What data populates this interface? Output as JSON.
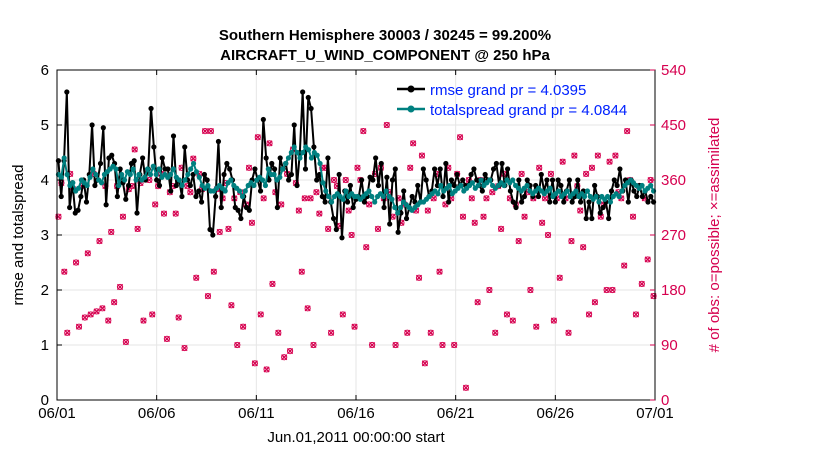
{
  "chart_data": {
    "type": "line",
    "title_line1": "Southern Hemisphere 30003 / 30245 = 99.200%",
    "title_line2": "AIRCRAFT_U_WIND_COMPONENT @ 250 hPa",
    "xlabel": "Jun.01,2011 00:00:00 start",
    "ylabel_left": "rmse and totalspread",
    "ylabel_right": "# of obs: o=possible; ×=assimilated",
    "xlim": [
      0,
      30
    ],
    "ylim_left": [
      0,
      6
    ],
    "ylim_right": [
      0,
      540
    ],
    "x_ticks": [
      {
        "value": 0,
        "label": "06/01"
      },
      {
        "value": 5,
        "label": "06/06"
      },
      {
        "value": 10,
        "label": "06/11"
      },
      {
        "value": 15,
        "label": "06/16"
      },
      {
        "value": 20,
        "label": "06/21"
      },
      {
        "value": 25,
        "label": "06/26"
      },
      {
        "value": 30,
        "label": "07/01"
      }
    ],
    "y_ticks_left": [
      "0",
      "1",
      "2",
      "3",
      "4",
      "5",
      "6"
    ],
    "y_ticks_right": [
      "0",
      "90",
      "180",
      "270",
      "360",
      "450",
      "540"
    ],
    "legend": [
      {
        "name": "rmse grand pr = 4.0395",
        "color": "#000000"
      },
      {
        "name": "totalspread grand pr = 4.0844",
        "color": "#008080"
      }
    ],
    "series": [
      {
        "name": "rmse",
        "color": "#000000",
        "values": [
          4.35,
          3.7,
          4.35,
          5.6,
          3.5,
          3.95,
          3.4,
          3.45,
          3.7,
          4.0,
          3.6,
          4.1,
          5.0,
          3.9,
          4.0,
          4.3,
          4.95,
          3.55,
          4.4,
          4.45,
          4.3,
          3.7,
          4.2,
          3.95,
          3.65,
          3.9,
          4.3,
          4.35,
          3.4,
          4.1,
          4.4,
          4.0,
          4.2,
          5.3,
          4.6,
          4.0,
          3.9,
          4.4,
          4.2,
          4.2,
          3.8,
          4.8,
          3.9,
          4.0,
          3.7,
          4.6,
          4.0,
          3.9,
          4.1,
          3.7,
          3.8,
          3.6,
          4.1,
          4.0,
          3.1,
          3.0,
          3.7,
          4.7,
          3.5,
          4.1,
          4.3,
          4.2,
          4.0,
          3.5,
          3.45,
          3.3,
          3.7,
          3.5,
          3.45,
          4.0,
          4.2,
          4.0,
          3.8,
          5.1,
          4.4,
          4.0,
          4.3,
          4.2,
          3.5,
          4.4,
          4.2,
          4.3,
          4.0,
          4.1,
          5.0,
          3.9,
          4.5,
          5.6,
          4.2,
          5.5,
          5.3,
          4.6,
          4.0,
          4.1,
          3.7,
          3.6,
          4.4,
          3.6,
          3.3,
          3.1,
          4.1,
          2.95,
          3.8,
          3.6,
          3.9,
          3.5,
          3.65,
          3.7,
          4.0,
          3.6,
          3.7,
          4.05,
          4.0,
          4.4,
          3.9,
          4.3,
          3.5,
          4.05,
          3.2,
          4.0,
          4.2,
          3.05,
          3.4,
          3.8,
          3.3,
          3.5,
          3.7,
          3.6,
          3.9,
          3.6,
          4.2,
          4.0,
          3.7,
          3.8,
          4.2,
          3.9,
          4.2,
          3.7,
          4.3,
          3.6,
          4.0,
          3.9,
          4.1,
          3.9,
          4.0,
          3.9,
          3.9,
          4.1,
          4.2,
          4.0,
          3.9,
          3.8,
          4.1,
          4.0,
          4.0,
          4.2,
          4.3,
          3.9,
          4.3,
          3.9,
          4.2,
          3.8,
          3.6,
          3.5,
          4.0,
          3.6,
          3.7,
          4.0,
          3.9,
          3.7,
          3.9,
          3.7,
          4.1,
          3.8,
          4.0,
          3.6,
          4.0,
          3.6,
          4.0,
          3.9,
          3.6,
          3.8,
          4.0,
          3.6,
          3.7,
          4.0,
          3.6,
          3.8,
          3.3,
          3.6,
          3.3,
          3.9,
          3.7,
          3.4,
          3.5,
          3.6,
          3.3,
          3.8,
          4.0,
          3.9,
          4.2,
          3.8,
          4.0,
          3.6,
          4.0,
          3.8,
          3.7,
          3.9,
          3.7,
          3.8,
          3.6,
          3.7,
          3.6
        ]
      },
      {
        "name": "totalspread",
        "color": "#008080",
        "values": [
          4.1,
          4.05,
          4.4,
          4.1,
          3.9,
          3.95,
          3.8,
          3.85,
          4.0,
          3.95,
          3.9,
          4.05,
          4.2,
          4.1,
          4.0,
          3.95,
          4.1,
          4.15,
          4.2,
          4.25,
          4.2,
          3.9,
          4.1,
          4.0,
          4.15,
          4.1,
          4.2,
          4.0,
          4.1,
          4.0,
          4.05,
          4.2,
          4.1,
          4.25,
          4.1,
          4.2,
          4.05,
          4.1,
          4.05,
          4.1,
          4.2,
          4.05,
          4.0,
          3.9,
          4.0,
          4.1,
          4.2,
          4.3,
          4.15,
          4.05,
          3.9,
          3.85,
          3.9,
          3.8,
          3.8,
          3.85,
          3.9,
          3.85,
          3.8,
          3.95,
          4.0,
          3.9,
          3.85,
          3.8,
          3.7,
          3.8,
          3.9,
          3.95,
          3.9,
          4.0,
          4.05,
          4.0,
          3.9,
          4.2,
          4.1,
          4.1,
          4.0,
          4.05,
          4.2,
          4.3,
          4.4,
          4.5,
          4.6,
          4.5,
          4.4,
          4.5,
          4.6,
          4.55,
          4.4,
          4.5,
          4.45,
          4.3,
          3.95,
          3.8,
          3.7,
          3.6,
          3.7,
          3.75,
          3.7,
          3.65,
          3.8,
          3.7,
          3.75,
          3.7,
          3.7,
          3.65,
          3.7,
          3.75,
          3.8,
          3.7,
          3.6,
          3.7,
          3.75,
          3.7,
          3.8,
          3.7,
          3.65,
          3.5,
          3.4,
          3.5,
          3.6,
          3.55,
          3.5,
          3.45,
          3.5,
          3.55,
          3.6,
          3.6,
          3.65,
          3.7,
          3.75,
          3.8,
          3.75,
          3.9,
          3.8,
          3.85,
          3.9,
          3.75,
          3.8,
          3.85,
          3.9,
          3.8,
          3.85,
          3.9,
          3.95,
          3.85,
          3.9,
          4.0,
          3.9,
          3.95,
          4.0,
          3.9,
          3.85,
          3.9,
          3.95,
          3.9,
          4.0,
          3.95,
          4.0,
          3.9,
          3.85,
          3.8,
          3.85,
          3.9,
          3.8,
          3.75,
          3.8,
          3.85,
          3.8,
          3.75,
          3.8,
          3.85,
          3.7,
          3.75,
          3.8,
          3.7,
          3.75,
          3.8,
          3.7,
          3.75,
          3.8,
          3.7,
          3.75,
          3.7,
          3.8,
          3.7,
          3.65,
          3.7,
          3.6,
          3.7,
          3.65,
          3.7,
          3.6,
          3.7,
          3.75,
          3.7,
          3.8,
          3.9,
          3.95,
          4.0,
          3.95,
          3.9,
          3.85,
          3.9,
          3.8,
          3.85,
          3.9,
          3.8
        ]
      }
    ],
    "obs_possible": [
      300,
      355,
      210,
      110,
      370,
      345,
      225,
      120,
      350,
      135,
      240,
      140,
      370,
      145,
      260,
      150,
      350,
      130,
      275,
      160,
      350,
      185,
      300,
      95,
      345,
      350,
      410,
      280,
      355,
      130,
      375,
      360,
      140,
      320,
      350,
      370,
      305,
      100,
      340,
      350,
      305,
      135,
      380,
      85,
      350,
      340,
      395,
      200,
      370,
      345,
      440,
      170,
      440,
      210,
      345,
      275,
      330,
      355,
      280,
      155,
      330,
      90,
      340,
      120,
      320,
      380,
      290,
      60,
      430,
      140,
      330,
      50,
      420,
      190,
      340,
      110,
      320,
      70,
      370,
      80,
      410,
      355,
      310,
      210,
      330,
      150,
      330,
      90,
      340,
      305,
      380,
      380,
      280,
      110,
      360,
      350,
      285,
      140,
      360,
      310,
      270,
      120,
      380,
      360,
      440,
      250,
      320,
      90,
      370,
      280,
      380,
      330,
      450,
      340,
      300,
      90,
      330,
      290,
      320,
      110,
      380,
      420,
      310,
      200,
      400,
      60,
      310,
      110,
      330,
      370,
      210,
      90,
      320,
      380,
      330,
      90,
      370,
      430,
      300,
      20,
      360,
      330,
      290,
      160,
      360,
      300,
      330,
      180,
      340,
      110,
      350,
      280,
      370,
      140,
      330,
      130,
      320,
      260,
      370,
      300,
      340,
      180,
      330,
      120,
      380,
      290,
      330,
      270,
      370,
      130,
      330,
      200,
      390,
      330,
      110,
      260,
      400,
      350,
      310,
      250,
      370,
      140,
      380,
      160,
      400,
      300,
      320,
      180,
      390,
      180,
      400,
      340,
      330,
      220,
      440,
      360,
      300,
      140,
      350,
      190,
      330,
      230,
      360,
      170
    ]
  }
}
